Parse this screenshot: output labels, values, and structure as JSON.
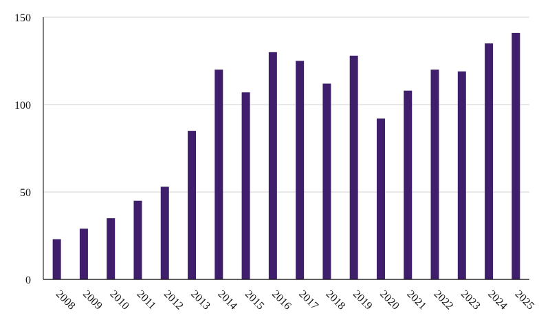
{
  "chart_data": {
    "type": "bar",
    "categories": [
      "2008",
      "2009",
      "2010",
      "2011",
      "2012",
      "2013",
      "2014",
      "2015",
      "2016",
      "2017",
      "2018",
      "2019",
      "2020",
      "2021",
      "2022",
      "2023",
      "2024",
      "2025"
    ],
    "values": [
      23,
      29,
      35,
      45,
      53,
      85,
      120,
      107,
      130,
      125,
      112,
      128,
      92,
      108,
      120,
      119,
      135,
      141
    ],
    "title": "",
    "xlabel": "",
    "ylabel": "",
    "ylim": [
      0,
      150
    ],
    "yticks": [
      0,
      50,
      100,
      150
    ],
    "grid": true,
    "bar_color": "#3f1f6b",
    "grid_color": "#d0d0d0",
    "axis_color": "#000000"
  }
}
